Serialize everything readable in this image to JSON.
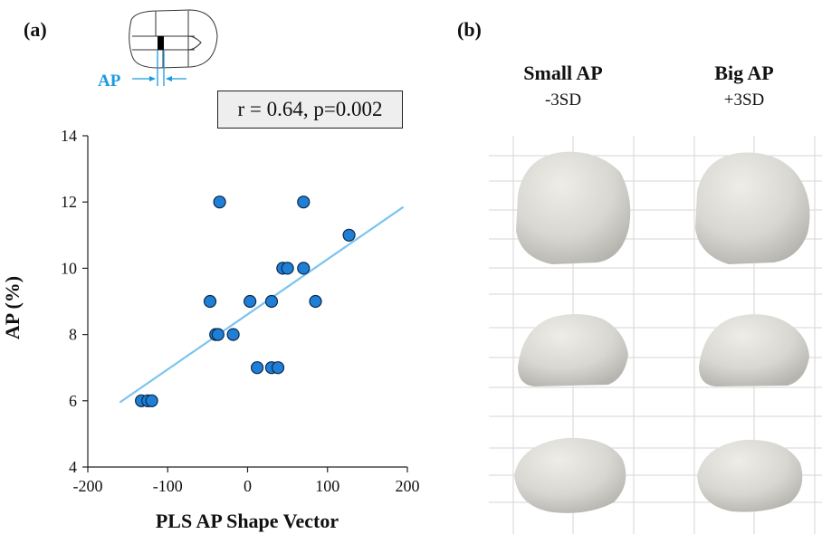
{
  "panels": {
    "a_label": "(a)",
    "b_label": "(b)"
  },
  "inset": {
    "label": "AP"
  },
  "stats": {
    "text": "r = 0.64, p=0.002"
  },
  "colors": {
    "points": "#1f7fd6",
    "point_edge": "#0b2a4a",
    "fit_line": "#7cc4ee",
    "inset_accent": "#1a9be0"
  },
  "chart_data": {
    "type": "scatter",
    "xlabel": "PLS AP Shape Vector",
    "ylabel": "AP (%)",
    "xlim": [
      -200,
      200
    ],
    "ylim": [
      4,
      14
    ],
    "xticks": [
      -200,
      -100,
      0,
      100,
      200
    ],
    "yticks": [
      4,
      6,
      8,
      10,
      12,
      14
    ],
    "grid": false,
    "points": [
      {
        "x": -133,
        "y": 6
      },
      {
        "x": -125,
        "y": 6
      },
      {
        "x": -120,
        "y": 6
      },
      {
        "x": -47,
        "y": 9
      },
      {
        "x": -40,
        "y": 8
      },
      {
        "x": -37,
        "y": 8
      },
      {
        "x": -35,
        "y": 12
      },
      {
        "x": -18,
        "y": 8
      },
      {
        "x": 3,
        "y": 9
      },
      {
        "x": 12,
        "y": 7
      },
      {
        "x": 30,
        "y": 7
      },
      {
        "x": 30,
        "y": 9
      },
      {
        "x": 38,
        "y": 7
      },
      {
        "x": 44,
        "y": 10
      },
      {
        "x": 50,
        "y": 10
      },
      {
        "x": 70,
        "y": 10
      },
      {
        "x": 70,
        "y": 12
      },
      {
        "x": 85,
        "y": 9
      },
      {
        "x": 127,
        "y": 11
      }
    ],
    "fit_line": {
      "x": [
        -160,
        195
      ],
      "y": [
        5.95,
        11.85
      ]
    }
  },
  "shapes": {
    "left_title": "Small AP",
    "left_sub": "-3SD",
    "right_title": "Big AP",
    "right_sub": "+3SD"
  }
}
